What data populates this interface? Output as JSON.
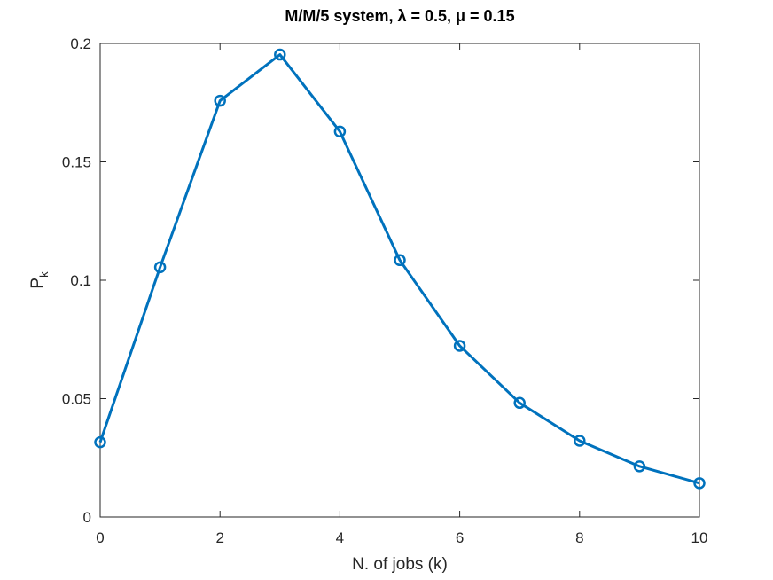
{
  "chart_data": {
    "type": "line",
    "title": "M/M/5 system, λ = 0.5, μ = 0.15",
    "xlabel": "N. of jobs (k)",
    "ylabel": "P",
    "ylabel_subscript": "k",
    "xlim": [
      0,
      10
    ],
    "ylim": [
      0,
      0.2
    ],
    "x_ticks": [
      0,
      2,
      4,
      6,
      8,
      10
    ],
    "x_tick_labels": [
      "0",
      "2",
      "4",
      "6",
      "8",
      "10"
    ],
    "y_ticks": [
      0,
      0.05,
      0.1,
      0.15,
      0.2
    ],
    "y_tick_labels": [
      "0",
      "0.05",
      "0.1",
      "0.15",
      "0.2"
    ],
    "grid": false,
    "legend": "none",
    "series": [
      {
        "color": "#0072BD",
        "marker": "circle",
        "x": [
          0,
          1,
          2,
          3,
          4,
          5,
          6,
          7,
          8,
          9,
          10
        ],
        "y": [
          0.0316,
          0.1055,
          0.1758,
          0.1953,
          0.1628,
          0.1085,
          0.0723,
          0.0482,
          0.0322,
          0.0214,
          0.0143
        ]
      }
    ]
  }
}
